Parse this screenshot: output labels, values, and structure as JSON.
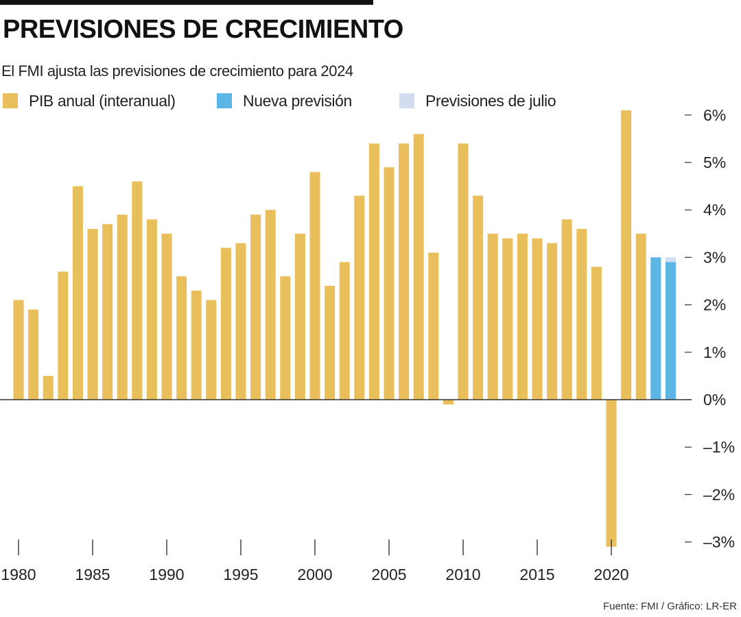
{
  "header": {
    "title": "PREVISIONES DE CRECIMIENTO",
    "subtitle": "El FMI ajusta las previsiones de crecimiento para 2024"
  },
  "legend": [
    {
      "label": "PIB anual (interanual)",
      "color": "#E8BF5A"
    },
    {
      "label": "Nueva previsión",
      "color": "#5BB6E6"
    },
    {
      "label": "Previsiones de julio",
      "color": "#D3DDF1"
    }
  ],
  "source": "Fuente: FMI / Gráfico: LR-ER",
  "chart_data": {
    "type": "bar",
    "title": "PREVISIONES DE CRECIMIENTO",
    "subtitle": "El FMI ajusta las previsiones de crecimiento para 2024",
    "xlabel": "",
    "ylabel": "",
    "ylim": [
      -3,
      6
    ],
    "yticks": [
      6,
      5,
      4,
      3,
      2,
      1,
      0,
      -1,
      -2,
      -3
    ],
    "ytick_labels": [
      "6%",
      "5%",
      "4%",
      "3%",
      "2%",
      "1%",
      "0%",
      "–1%",
      "–2%",
      "–3%"
    ],
    "xtick_labels": [
      "1980",
      "1985",
      "1990",
      "1995",
      "2000",
      "2005",
      "2010",
      "2015",
      "2020"
    ],
    "categories": [
      1980,
      1981,
      1982,
      1983,
      1984,
      1985,
      1986,
      1987,
      1988,
      1989,
      1990,
      1991,
      1992,
      1993,
      1994,
      1995,
      1996,
      1997,
      1998,
      1999,
      2000,
      2001,
      2002,
      2003,
      2004,
      2005,
      2006,
      2007,
      2008,
      2009,
      2010,
      2011,
      2012,
      2013,
      2014,
      2015,
      2016,
      2017,
      2018,
      2019,
      2020,
      2021,
      2022,
      2023,
      2024
    ],
    "series": [
      {
        "name": "PIB anual (interanual)",
        "color": "#E8BF5A",
        "values": [
          2.1,
          1.9,
          0.5,
          2.7,
          4.5,
          3.6,
          3.7,
          3.9,
          4.6,
          3.8,
          3.5,
          2.6,
          2.3,
          2.1,
          3.2,
          3.3,
          3.9,
          4.0,
          2.6,
          3.5,
          4.8,
          2.4,
          2.9,
          4.3,
          5.4,
          4.9,
          5.4,
          5.6,
          3.1,
          -0.1,
          5.4,
          4.3,
          3.5,
          3.4,
          3.5,
          3.4,
          3.3,
          3.8,
          3.6,
          2.8,
          -3.1,
          6.1,
          3.5,
          null,
          null
        ]
      },
      {
        "name": "Nueva previsión",
        "color": "#5BB6E6",
        "values": [
          null,
          null,
          null,
          null,
          null,
          null,
          null,
          null,
          null,
          null,
          null,
          null,
          null,
          null,
          null,
          null,
          null,
          null,
          null,
          null,
          null,
          null,
          null,
          null,
          null,
          null,
          null,
          null,
          null,
          null,
          null,
          null,
          null,
          null,
          null,
          null,
          null,
          null,
          null,
          null,
          null,
          null,
          null,
          3.0,
          2.9
        ]
      },
      {
        "name": "Previsiones de julio",
        "color": "#D3DDF1",
        "values": [
          null,
          null,
          null,
          null,
          null,
          null,
          null,
          null,
          null,
          null,
          null,
          null,
          null,
          null,
          null,
          null,
          null,
          null,
          null,
          null,
          null,
          null,
          null,
          null,
          null,
          null,
          null,
          null,
          null,
          null,
          null,
          null,
          null,
          null,
          null,
          null,
          null,
          null,
          null,
          null,
          null,
          null,
          null,
          3.0,
          3.0
        ]
      }
    ]
  }
}
